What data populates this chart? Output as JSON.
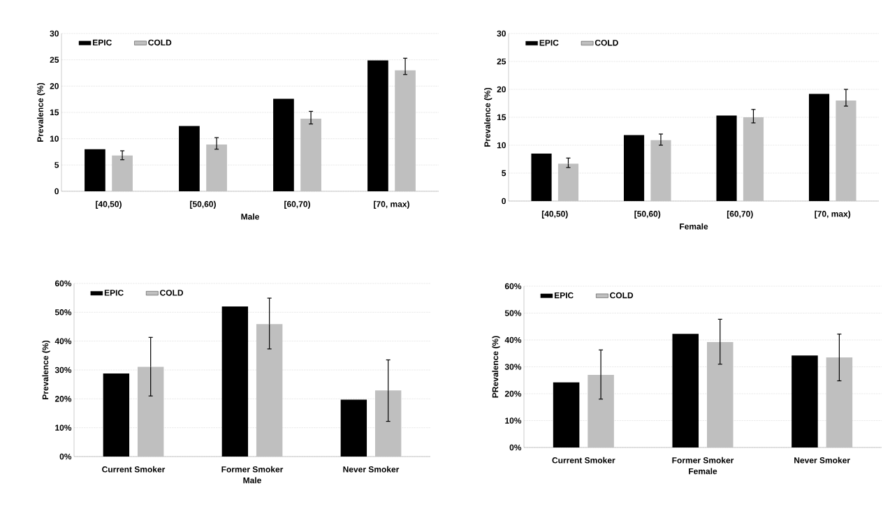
{
  "chart_data": [
    {
      "type": "bar",
      "xlabel": "Male",
      "ylabel": "Prevalence (%)",
      "categories": [
        "[40,50)",
        "[50,60)",
        "[60,70)",
        "[70, max)"
      ],
      "series": [
        {
          "name": "EPIC",
          "color": "#000000",
          "values": [
            8.0,
            12.4,
            17.6,
            24.9
          ]
        },
        {
          "name": "COLD",
          "color": "#bfbfbf",
          "values": [
            6.8,
            8.9,
            13.8,
            23.0
          ],
          "errors": [
            [
              6.0,
              7.7
            ],
            [
              8.0,
              10.2
            ],
            [
              12.8,
              15.2
            ],
            [
              22.2,
              25.3
            ]
          ]
        }
      ],
      "ylim": [
        0,
        30
      ],
      "yticks": [
        0,
        5,
        10,
        15,
        20,
        25,
        30
      ],
      "grid": "y",
      "legend": "top left"
    },
    {
      "type": "bar",
      "xlabel": "Female",
      "ylabel": "Prevalence (%)",
      "categories": [
        "[40,50)",
        "[50,60)",
        "[60,70)",
        "[70, max)"
      ],
      "series": [
        {
          "name": "EPIC",
          "color": "#000000",
          "values": [
            8.5,
            11.8,
            15.3,
            19.2
          ]
        },
        {
          "name": "COLD",
          "color": "#bfbfbf",
          "values": [
            6.7,
            10.9,
            15.0,
            18.0
          ],
          "errors": [
            [
              6.0,
              7.7
            ],
            [
              10.0,
              12.0
            ],
            [
              14.0,
              16.4
            ],
            [
              17.0,
              20.0
            ]
          ]
        }
      ],
      "ylim": [
        0,
        30
      ],
      "yticks": [
        0,
        5,
        10,
        15,
        20,
        25,
        30
      ],
      "grid": "y",
      "legend": "top left"
    },
    {
      "type": "bar",
      "xlabel": "Male",
      "ylabel": "Prevalence (%)",
      "categories": [
        "Current Smoker",
        "Former Smoker",
        "Never Smoker"
      ],
      "series": [
        {
          "name": "EPIC",
          "color": "#000000",
          "values": [
            28.8,
            52.0,
            19.7
          ]
        },
        {
          "name": "COLD",
          "color": "#bfbfbf",
          "values": [
            31.1,
            45.9,
            22.9
          ],
          "errors": [
            [
              21.0,
              41.3
            ],
            [
              37.3,
              54.9
            ],
            [
              12.2,
              33.5
            ]
          ]
        }
      ],
      "ylim": [
        0,
        60
      ],
      "yticks": [
        {
          "value": 0,
          "label": "0%"
        },
        {
          "value": 10,
          "label": "10%"
        },
        {
          "value": 20,
          "label": "20%"
        },
        {
          "value": 30,
          "label": "30%"
        },
        {
          "value": 40,
          "label": "40%"
        },
        {
          "value": 50,
          "label": "50%"
        },
        {
          "value": 60,
          "label": "60%"
        }
      ],
      "grid": "y",
      "legend": "top left"
    },
    {
      "type": "bar",
      "xlabel": "Female",
      "ylabel": "PRevalence (%)",
      "categories": [
        "Current Smoker",
        "Former Smoker",
        "Never Smoker"
      ],
      "series": [
        {
          "name": "EPIC",
          "color": "#000000",
          "values": [
            24.2,
            42.3,
            34.2
          ]
        },
        {
          "name": "COLD",
          "color": "#bfbfbf",
          "values": [
            27.0,
            39.2,
            33.5
          ],
          "errors": [
            [
              18.0,
              36.3
            ],
            [
              31.0,
              47.7
            ],
            [
              24.8,
              42.2
            ]
          ]
        }
      ],
      "ylim": [
        0,
        60
      ],
      "yticks": [
        {
          "value": 0,
          "label": "0%"
        },
        {
          "value": 10,
          "label": "10%"
        },
        {
          "value": 20,
          "label": "20%"
        },
        {
          "value": 30,
          "label": "30%"
        },
        {
          "value": 40,
          "label": "40%"
        },
        {
          "value": 50,
          "label": "50%"
        },
        {
          "value": 60,
          "label": "60%"
        }
      ],
      "grid": "y",
      "legend": "top left"
    }
  ]
}
